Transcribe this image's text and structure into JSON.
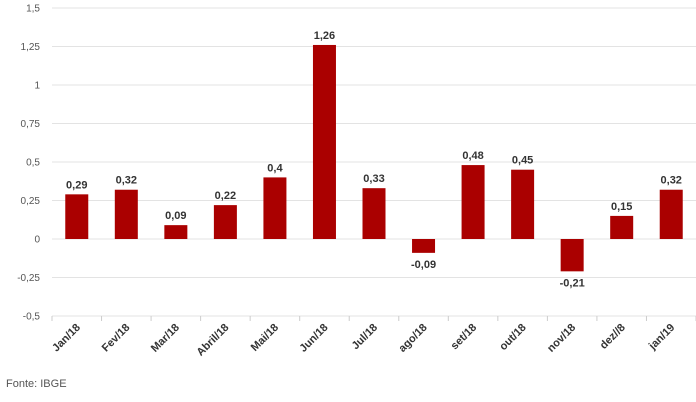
{
  "chart_data": {
    "type": "bar",
    "categories": [
      "Jan/18",
      "Fev/18",
      "Mar/18",
      "Abril/18",
      "Mai/18",
      "Jun/18",
      "Jul/18",
      "ago/18",
      "set/18",
      "out/18",
      "nov/18",
      "dez//8",
      "jan/19"
    ],
    "values": [
      0.29,
      0.32,
      0.09,
      0.22,
      0.4,
      1.26,
      0.33,
      -0.09,
      0.48,
      0.45,
      -0.21,
      0.15,
      0.32
    ],
    "data_labels": [
      "0,29",
      "0,32",
      "0,09",
      "0,22",
      "0,4",
      "1,26",
      "0,33",
      "-0,09",
      "0,48",
      "0,45",
      "-0,21",
      "0,15",
      "0,32"
    ],
    "yticks": [
      1.5,
      1.25,
      1,
      0.75,
      0.5,
      0.25,
      0,
      -0.25,
      -0.5
    ],
    "ytick_labels": [
      "1,5",
      "1,25",
      "1",
      "0,75",
      "0,5",
      "0,25",
      "0",
      "-0,25",
      "-0,5"
    ],
    "ylim": [
      -0.5,
      1.5
    ],
    "grid": true,
    "bar_color": "#aa0000",
    "grid_color": "#e3e3e3"
  },
  "source": "Fonte: IBGE"
}
